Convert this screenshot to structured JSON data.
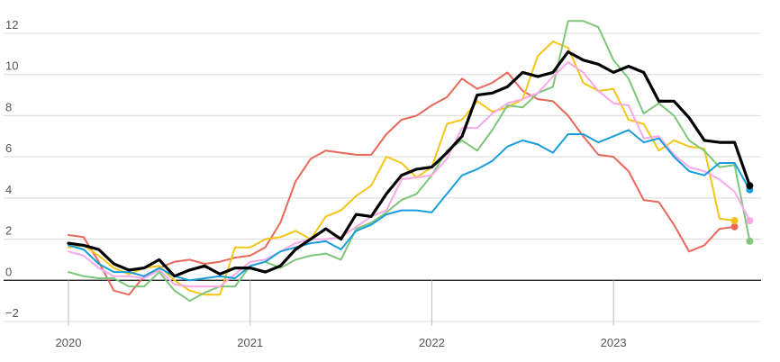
{
  "chart_data": {
    "type": "line",
    "title": "",
    "xlabel": "",
    "ylabel": "",
    "ylim": [
      -2.4,
      13.2
    ],
    "yticks": [
      -2,
      0,
      2,
      4,
      6,
      8,
      10,
      12
    ],
    "xticks": [
      "2020",
      "2021",
      "2022",
      "2023"
    ],
    "x_start": "2020-01",
    "grid": true,
    "series": [
      {
        "color": "#e8685a",
        "width": 2,
        "values": [
          2.2,
          2.1,
          0.9,
          -0.5,
          -0.7,
          0.2,
          0.6,
          0.9,
          1.0,
          0.8,
          0.9,
          1.1,
          1.2,
          1.6,
          2.8,
          4.8,
          5.9,
          6.3,
          6.2,
          6.1,
          6.1,
          7.1,
          7.8,
          8.0,
          8.5,
          8.9,
          9.8,
          9.3,
          9.6,
          10.1,
          9.2,
          8.8,
          8.7,
          8.0,
          7.0,
          6.1,
          6.0,
          5.3,
          3.9,
          3.8,
          2.7,
          1.4,
          1.7,
          2.5,
          2.6
        ]
      },
      {
        "color": "#f5c518",
        "width": 2,
        "values": [
          1.6,
          1.7,
          1.2,
          0.6,
          0.3,
          0.6,
          0.7,
          0.0,
          -0.5,
          -0.7,
          -0.7,
          1.6,
          1.6,
          2.0,
          2.1,
          2.4,
          2.0,
          3.1,
          3.4,
          4.1,
          4.6,
          6.0,
          5.7,
          5.0,
          5.5,
          7.6,
          7.8,
          8.7,
          8.2,
          8.4,
          8.8,
          10.9,
          11.6,
          11.3,
          9.6,
          9.2,
          9.3,
          7.8,
          7.6,
          6.3,
          6.8,
          6.5,
          6.4,
          3.0,
          2.9
        ]
      },
      {
        "color": "#7dc67a",
        "width": 2,
        "values": [
          0.4,
          0.2,
          0.1,
          0.1,
          -0.3,
          -0.3,
          0.4,
          -0.5,
          -1.0,
          -0.6,
          -0.3,
          -0.3,
          0.7,
          0.9,
          0.6,
          1.0,
          1.2,
          1.3,
          1.0,
          2.5,
          2.8,
          3.3,
          3.9,
          4.2,
          5.1,
          6.3,
          6.8,
          6.3,
          7.3,
          8.5,
          8.4,
          9.1,
          9.4,
          12.6,
          12.6,
          12.3,
          10.7,
          9.8,
          8.1,
          8.6,
          8.0,
          6.8,
          6.3,
          5.5,
          5.6,
          1.9
        ]
      },
      {
        "color": "#f9a8e8",
        "width": 2,
        "values": [
          1.4,
          1.2,
          0.6,
          0.2,
          0.2,
          0.1,
          0.5,
          -0.2,
          -0.3,
          -0.3,
          -0.3,
          0.3,
          0.9,
          1.0,
          1.4,
          1.8,
          2.0,
          2.0,
          2.1,
          2.6,
          3.1,
          3.4,
          4.9,
          5.0,
          5.1,
          5.9,
          7.4,
          7.4,
          8.1,
          8.6,
          8.8,
          9.1,
          9.9,
          10.6,
          10.1,
          9.2,
          8.6,
          8.5,
          6.9,
          7.0,
          6.1,
          5.5,
          5.3,
          4.9,
          4.3,
          2.9
        ]
      },
      {
        "color": "#1a9edb",
        "width": 2,
        "values": [
          1.7,
          1.5,
          0.8,
          0.4,
          0.4,
          0.2,
          0.6,
          0.2,
          0.0,
          0.1,
          0.2,
          0.1,
          0.7,
          0.9,
          1.4,
          1.6,
          1.8,
          1.9,
          1.5,
          2.4,
          2.7,
          3.2,
          3.4,
          3.4,
          3.3,
          4.2,
          5.1,
          5.4,
          5.8,
          6.5,
          6.8,
          6.6,
          6.2,
          7.1,
          7.1,
          6.7,
          7.0,
          7.3,
          6.7,
          6.9,
          6.0,
          5.3,
          5.1,
          5.7,
          5.7,
          4.4
        ]
      },
      {
        "color": "#000000",
        "width": 3.2,
        "values": [
          1.8,
          1.7,
          1.5,
          0.8,
          0.5,
          0.6,
          1.0,
          0.2,
          0.5,
          0.7,
          0.3,
          0.6,
          0.6,
          0.4,
          0.7,
          1.5,
          2.0,
          2.5,
          2.0,
          3.2,
          3.1,
          4.2,
          5.1,
          5.4,
          5.5,
          6.2,
          7.0,
          9.0,
          9.1,
          9.4,
          10.1,
          9.9,
          10.1,
          11.1,
          10.7,
          10.5,
          10.1,
          10.4,
          10.1,
          8.7,
          8.7,
          7.9,
          6.8,
          6.7,
          6.7,
          4.6
        ]
      }
    ]
  }
}
